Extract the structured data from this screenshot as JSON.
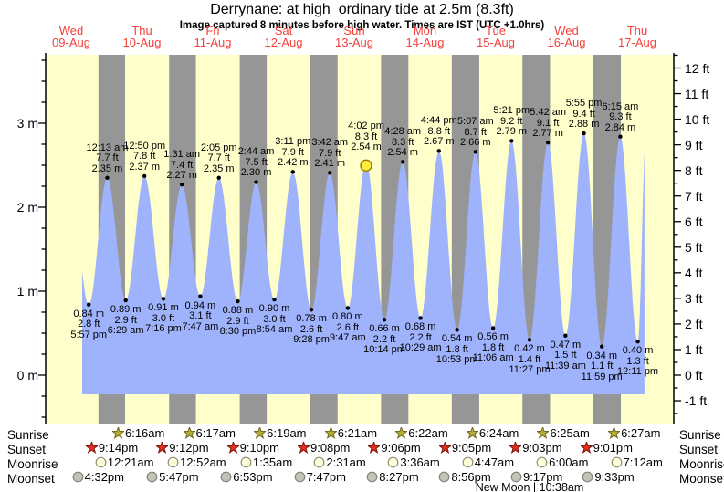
{
  "page": {
    "title": "Derrynane: at high  ordinary tide at 2.5m (8.3ft)",
    "subtitle": "Image captured 8 minutes before high water. Times are IST (UTC +1.0hrs)"
  },
  "chart_data": {
    "type": "area",
    "title": "Derrynane: at high  ordinary tide at 2.5m (8.3ft)",
    "subtitle": "Image captured 8 minutes before high water. Times are IST (UTC +1.0hrs)",
    "x_days": [
      {
        "dow": "Wed",
        "date": "09-Aug"
      },
      {
        "dow": "Thu",
        "date": "10-Aug"
      },
      {
        "dow": "Fri",
        "date": "11-Aug"
      },
      {
        "dow": "Sat",
        "date": "12-Aug"
      },
      {
        "dow": "Sun",
        "date": "13-Aug"
      },
      {
        "dow": "Mon",
        "date": "14-Aug"
      },
      {
        "dow": "Tue",
        "date": "15-Aug"
      },
      {
        "dow": "Wed",
        "date": "16-Aug"
      },
      {
        "dow": "Thu",
        "date": "17-Aug"
      }
    ],
    "y_left_axis": {
      "unit": "m",
      "tick_values": [
        0,
        1,
        2,
        3
      ],
      "tick_suffix": " m",
      "minor_step": 0.25,
      "range_m": [
        -0.6,
        3.85
      ]
    },
    "y_right_axis": {
      "unit": "ft",
      "tick_values": [
        -1,
        0,
        1,
        2,
        3,
        4,
        5,
        6,
        7,
        8,
        9,
        10,
        11,
        12
      ],
      "tick_suffix": " ft",
      "minor_step": 0.5
    },
    "grid": false,
    "night_shading": "sunset-to-sunrise gray bands",
    "tide_events": [
      {
        "day": 0,
        "time": "5:57 pm",
        "type": "low",
        "m": "0.84",
        "ft": "2.8"
      },
      {
        "day": 1,
        "time": "12:13 am",
        "type": "high",
        "m": "2.35",
        "ft": "7.7"
      },
      {
        "day": 1,
        "time": "6:29 am",
        "type": "low",
        "m": "0.89",
        "ft": "2.9"
      },
      {
        "day": 1,
        "time": "12:50 pm",
        "type": "high",
        "m": "2.37",
        "ft": "7.8"
      },
      {
        "day": 1,
        "time": "7:16 pm",
        "type": "low",
        "m": "0.91",
        "ft": "3.0"
      },
      {
        "day": 2,
        "time": "1:31 am",
        "type": "high",
        "m": "2.27",
        "ft": "7.4"
      },
      {
        "day": 2,
        "time": "7:47 am",
        "type": "low",
        "m": "0.94",
        "ft": "3.1"
      },
      {
        "day": 2,
        "time": "2:05 pm",
        "type": "high",
        "m": "2.35",
        "ft": "7.7"
      },
      {
        "day": 2,
        "time": "8:30 pm",
        "type": "low",
        "m": "0.88",
        "ft": "2.9"
      },
      {
        "day": 3,
        "time": "2:44 am",
        "type": "high",
        "m": "2.30",
        "ft": "7.5"
      },
      {
        "day": 3,
        "time": "8:54 am",
        "type": "low",
        "m": "0.90",
        "ft": "3.0"
      },
      {
        "day": 3,
        "time": "3:11 pm",
        "type": "high",
        "m": "2.42",
        "ft": "7.9"
      },
      {
        "day": 3,
        "time": "9:28 pm",
        "type": "low",
        "m": "0.78",
        "ft": "2.6"
      },
      {
        "day": 4,
        "time": "3:42 am",
        "type": "high",
        "m": "2.41",
        "ft": "7.9"
      },
      {
        "day": 4,
        "time": "9:47 am",
        "type": "low",
        "m": "0.80",
        "ft": "2.6"
      },
      {
        "day": 4,
        "time": "4:02 pm",
        "type": "high",
        "m": "2.54",
        "ft": "8.3",
        "current": true
      },
      {
        "day": 4,
        "time": "10:14 pm",
        "type": "low",
        "m": "0.66",
        "ft": "2.2"
      },
      {
        "day": 5,
        "time": "4:28 am",
        "type": "high",
        "m": "2.54",
        "ft": "8.3"
      },
      {
        "day": 5,
        "time": "10:29 am",
        "type": "low",
        "m": "0.68",
        "ft": "2.2"
      },
      {
        "day": 5,
        "time": "4:44 pm",
        "type": "high",
        "m": "2.67",
        "ft": "8.8"
      },
      {
        "day": 5,
        "time": "10:53 pm",
        "type": "low",
        "m": "0.54",
        "ft": "1.8"
      },
      {
        "day": 6,
        "time": "5:07 am",
        "type": "high",
        "m": "2.66",
        "ft": "8.7"
      },
      {
        "day": 6,
        "time": "11:06 am",
        "type": "low",
        "m": "0.56",
        "ft": "1.8"
      },
      {
        "day": 6,
        "time": "5:21 pm",
        "type": "high",
        "m": "2.79",
        "ft": "9.2"
      },
      {
        "day": 6,
        "time": "11:27 pm",
        "type": "low",
        "m": "0.42",
        "ft": "1.4"
      },
      {
        "day": 7,
        "time": "5:42 am",
        "type": "high",
        "m": "2.77",
        "ft": "9.1"
      },
      {
        "day": 7,
        "time": "11:39 am",
        "type": "low",
        "m": "0.47",
        "ft": "1.5"
      },
      {
        "day": 7,
        "time": "5:55 pm",
        "type": "high",
        "m": "2.88",
        "ft": "9.4"
      },
      {
        "day": 7,
        "time": "11:59 pm",
        "type": "low",
        "m": "0.34",
        "ft": "1.1"
      },
      {
        "day": 8,
        "time": "6:15 am",
        "type": "high",
        "m": "2.84",
        "ft": "9.3"
      },
      {
        "day": 8,
        "time": "12:11 pm",
        "type": "low",
        "m": "0.40",
        "ft": "1.3"
      }
    ],
    "astro": {
      "rows": [
        {
          "key": "sunrise",
          "label": "Sunrise",
          "icon": "sunrise-star-icon",
          "times": [
            {
              "day": 1,
              "time": "6:16am"
            },
            {
              "day": 2,
              "time": "6:17am"
            },
            {
              "day": 3,
              "time": "6:19am"
            },
            {
              "day": 4,
              "time": "6:21am"
            },
            {
              "day": 5,
              "time": "6:22am"
            },
            {
              "day": 6,
              "time": "6:24am"
            },
            {
              "day": 7,
              "time": "6:25am"
            },
            {
              "day": 8,
              "time": "6:27am"
            }
          ]
        },
        {
          "key": "sunset",
          "label": "Sunset",
          "icon": "sunset-star-icon",
          "times": [
            {
              "day": 0,
              "time": "9:14pm"
            },
            {
              "day": 1,
              "time": "9:12pm"
            },
            {
              "day": 2,
              "time": "9:10pm"
            },
            {
              "day": 3,
              "time": "9:08pm"
            },
            {
              "day": 4,
              "time": "9:06pm"
            },
            {
              "day": 5,
              "time": "9:05pm"
            },
            {
              "day": 6,
              "time": "9:03pm"
            },
            {
              "day": 7,
              "time": "9:01pm"
            }
          ]
        },
        {
          "key": "moonrise",
          "label": "Moonrise",
          "icon": "moonrise-circle-icon",
          "times": [
            {
              "day": 1,
              "time": "12:21am"
            },
            {
              "day": 2,
              "time": "12:52am"
            },
            {
              "day": 3,
              "time": "1:35am"
            },
            {
              "day": 4,
              "time": "2:31am"
            },
            {
              "day": 5,
              "time": "3:36am"
            },
            {
              "day": 6,
              "time": "4:47am"
            },
            {
              "day": 7,
              "time": "6:00am"
            },
            {
              "day": 8,
              "time": "7:12am"
            }
          ]
        },
        {
          "key": "moonset",
          "label": "Moonset",
          "icon": "moonset-circle-icon",
          "times": [
            {
              "day": 0,
              "time": "4:32pm"
            },
            {
              "day": 1,
              "time": "5:47pm"
            },
            {
              "day": 2,
              "time": "6:53pm"
            },
            {
              "day": 3,
              "time": "7:47pm"
            },
            {
              "day": 4,
              "time": "8:27pm"
            },
            {
              "day": 5,
              "time": "8:56pm"
            },
            {
              "day": 6,
              "time": "9:17pm"
            },
            {
              "day": 7,
              "time": "9:33pm"
            }
          ]
        }
      ],
      "new_moon": "New Moon | 10:38am"
    },
    "colors": {
      "daylight_bg": "#ffffcc",
      "night_band": "#969696",
      "tide_fill": "#9fb2fc",
      "day_label": "#f5413b",
      "current_marker_fill": "#ffec3e",
      "current_marker_stroke": "#8f7d00",
      "sunrise_star_fill": "#b5ae35",
      "sunrise_star_stroke": "#6e6a1e",
      "sunset_star_fill": "#e1301e",
      "sunset_star_stroke": "#7a150c",
      "moonrise_fill": "#ffffd9",
      "moonrise_stroke": "#8f8f7a",
      "moonset_fill": "#c4c4b6",
      "moonset_stroke": "#82827a",
      "axis": "#000000",
      "text": "#000000"
    }
  }
}
